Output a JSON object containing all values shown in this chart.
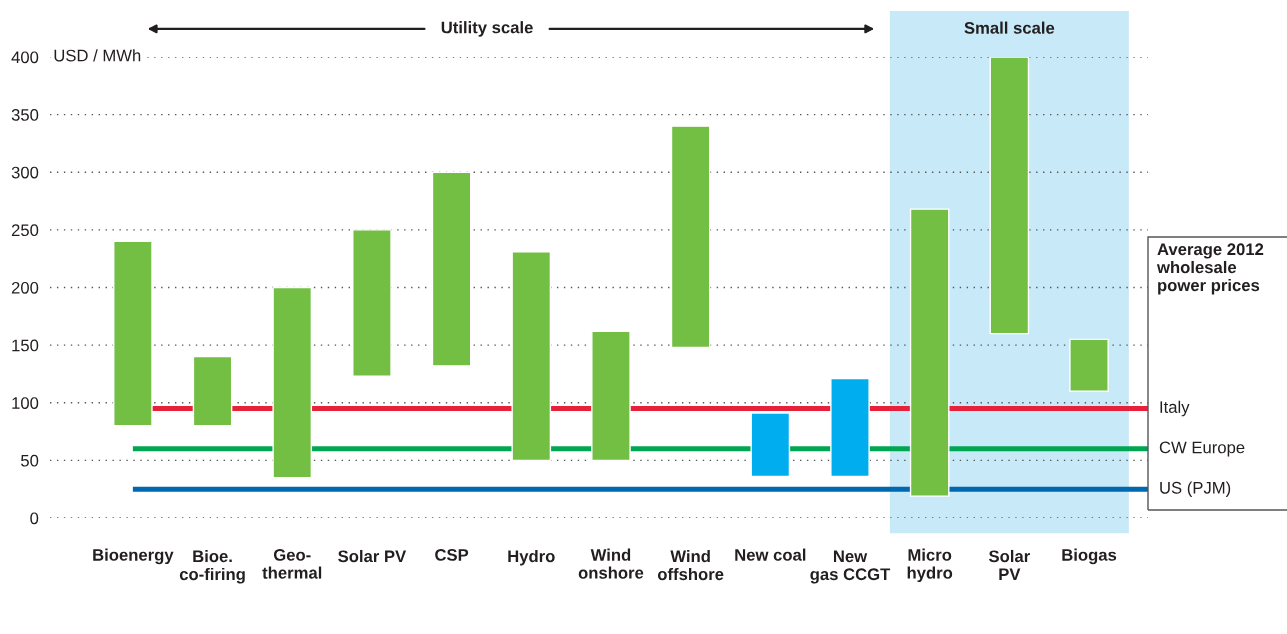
{
  "chart_data": {
    "type": "bar",
    "categories": [
      "Bioenergy",
      "Bioe.\nco-firing",
      "Geo-\nthermal",
      "Solar PV",
      "CSP",
      "Hydro",
      "Wind\nonshore",
      "Wind\noffshore",
      "New coal",
      "New\ngas CCGT",
      "Micro\nhydro",
      "Solar\nPV",
      "Biogas"
    ],
    "base": [
      80,
      80,
      35,
      123,
      132,
      50,
      50,
      148,
      36,
      36,
      19,
      160,
      110
    ],
    "values": [
      160,
      60,
      165,
      127,
      168,
      181,
      112,
      192,
      55,
      85,
      249,
      240,
      45
    ],
    "colors": [
      "#72bf44",
      "#72bf44",
      "#72bf44",
      "#72bf44",
      "#72bf44",
      "#72bf44",
      "#72bf44",
      "#72bf44",
      "#00aeef",
      "#00aeef",
      "#72bf44",
      "#72bf44",
      "#72bf44"
    ],
    "ylabel": "USD / MWh",
    "ylim": [
      0,
      400
    ],
    "yticks": [
      0,
      50,
      100,
      150,
      200,
      250,
      300,
      350,
      400
    ],
    "grid": "y",
    "legend_title": "Average 2012 wholesale power prices",
    "ref_lines": [
      {
        "axis": "y",
        "value": 95,
        "label": "Italy",
        "color": "#e8213a"
      },
      {
        "axis": "y",
        "value": 60,
        "label": "CW Europe",
        "color": "#00a651"
      },
      {
        "axis": "y",
        "value": 25,
        "label": "US (PJM)",
        "color": "#0067b1"
      }
    ],
    "bands": [
      {
        "axis": "x",
        "from": "Micro\nhydro",
        "to": "Biogas",
        "label": "Small scale",
        "color": "#c8e9f8"
      }
    ],
    "annotations": [
      "Utility scale"
    ]
  }
}
